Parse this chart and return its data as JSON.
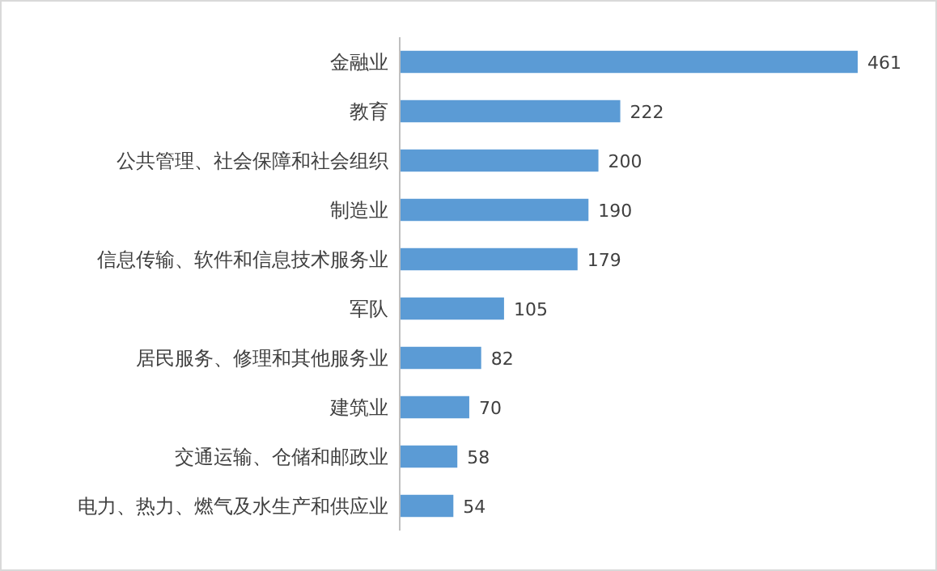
{
  "chart_data": {
    "type": "bar",
    "orientation": "horizontal",
    "categories": [
      "金融业",
      "教育",
      "公共管理、社会保障和社会组织",
      "制造业",
      "信息传输、软件和信息技术服务业",
      "军队",
      "居民服务、修理和其他服务业",
      "建筑业",
      "交通运输、仓储和邮政业",
      "电力、热力、燃气及水生产和供应业"
    ],
    "values": [
      461,
      222,
      200,
      190,
      179,
      105,
      82,
      70,
      58,
      54
    ],
    "color": "#5b9bd5",
    "data_labels": true,
    "tick_labels": "y"
  }
}
